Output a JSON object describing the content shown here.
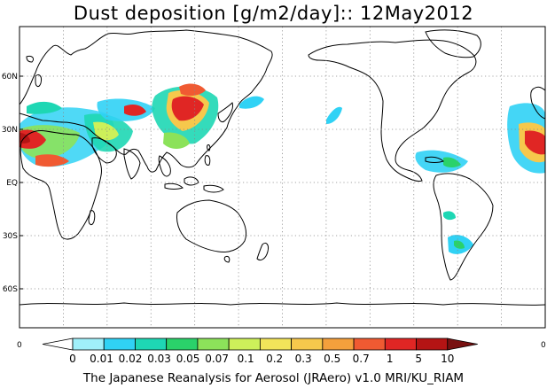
{
  "title": "Dust deposition [g/m2/day]:: 12May2012",
  "footer": "The Japanese Reanalysis for Aerosol (JRAero) v1.0 MRI/KU_RIAM",
  "lat_labels": [
    "60N",
    "30N",
    "EQ",
    "30S",
    "60S"
  ],
  "lat_values": [
    60,
    30,
    0,
    -30,
    -60
  ],
  "lon_corner_labels": [
    "0",
    "0"
  ],
  "colorbar": {
    "labels": [
      "0",
      "0.01",
      "0.02",
      "0.03",
      "0.05",
      "0.07",
      "0.1",
      "0.2",
      "0.3",
      "0.5",
      "0.7",
      "1",
      "5",
      "10"
    ],
    "colors": [
      "#ffffff",
      "#a0f0fa",
      "#30d2f5",
      "#1ed7b4",
      "#2ad26a",
      "#8ce25a",
      "#cdf05a",
      "#f2e45a",
      "#f6c84c",
      "#f5a03c",
      "#f05a32",
      "#e02624",
      "#b41414",
      "#781010"
    ]
  },
  "colors": {
    "coast": "#000000",
    "grid": "#888888"
  }
}
